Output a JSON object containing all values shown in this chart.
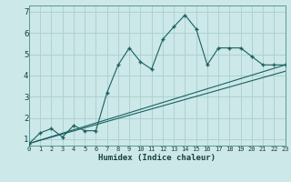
{
  "xlabel": "Humidex (Indice chaleur)",
  "bg_color": "#cce8e8",
  "grid_color": "#aacece",
  "line_color": "#1a6060",
  "text_color": "#1a4040",
  "xlim": [
    0,
    23
  ],
  "ylim": [
    0.7,
    7.3
  ],
  "xticks": [
    0,
    1,
    2,
    3,
    4,
    5,
    6,
    7,
    8,
    9,
    10,
    11,
    12,
    13,
    14,
    15,
    16,
    17,
    18,
    19,
    20,
    21,
    22,
    23
  ],
  "yticks": [
    1,
    2,
    3,
    4,
    5,
    6,
    7
  ],
  "line1_x": [
    0,
    1,
    2,
    3,
    4,
    5,
    6,
    7,
    8,
    9,
    10,
    11,
    12,
    13,
    14,
    15,
    16,
    17,
    18,
    19,
    20,
    21,
    22,
    23
  ],
  "line1_y": [
    0.8,
    1.3,
    1.5,
    1.1,
    1.65,
    1.4,
    1.4,
    3.2,
    4.5,
    5.3,
    4.65,
    4.3,
    5.7,
    6.3,
    6.85,
    6.2,
    4.5,
    5.3,
    5.3,
    5.3,
    4.9,
    4.5,
    4.5,
    4.5
  ],
  "line2_x": [
    0,
    23
  ],
  "line2_y": [
    0.8,
    4.5
  ],
  "line3_x": [
    0,
    23
  ],
  "line3_y": [
    0.8,
    4.2
  ]
}
